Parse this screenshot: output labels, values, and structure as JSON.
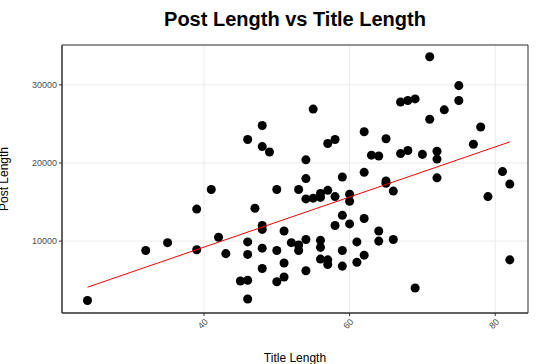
{
  "chart_data": {
    "type": "scatter",
    "title": "Post Length vs Title Length",
    "x_label": "Title Length",
    "y_label": "Post Length",
    "xlim": [
      20.5,
      84.5
    ],
    "ylim": [
      800,
      35100
    ],
    "xticks": [
      40,
      60,
      80
    ],
    "yticks": [
      10000,
      20000,
      30000
    ],
    "grid": true,
    "series": [
      {
        "type": "scatter",
        "color": "#000000",
        "marker": "circle",
        "x": [
          24,
          32,
          35,
          39,
          39,
          41,
          42,
          43,
          45,
          46,
          46,
          46,
          46,
          46,
          47,
          48,
          48,
          48,
          48,
          48,
          48,
          49,
          50,
          50,
          50,
          51,
          51,
          51,
          52,
          53,
          53,
          53,
          54,
          54,
          54,
          54,
          54,
          55,
          55,
          56,
          56,
          56,
          56,
          56,
          57,
          57,
          57,
          57,
          58,
          58,
          58,
          59,
          59,
          59,
          59,
          60,
          60,
          60,
          61,
          61,
          62,
          62,
          62,
          62,
          63,
          64,
          64,
          64,
          65,
          65,
          65,
          66,
          66,
          67,
          67,
          68,
          68,
          69,
          69,
          70,
          71,
          71,
          72,
          72,
          72,
          73,
          75,
          75,
          77,
          78,
          79,
          81,
          82,
          82
        ],
        "values": [
          2400,
          8800,
          9800,
          14100,
          8900,
          16600,
          10500,
          8400,
          4900,
          23000,
          9900,
          8300,
          5000,
          2600,
          14200,
          24800,
          22100,
          12000,
          11500,
          9100,
          6500,
          21400,
          16600,
          8800,
          4800,
          5400,
          7200,
          11300,
          9800,
          9500,
          16600,
          8800,
          20400,
          15400,
          18000,
          10200,
          6200,
          26900,
          15500,
          15600,
          16100,
          7700,
          9200,
          10100,
          22500,
          16500,
          7000,
          7600,
          23000,
          15700,
          12000,
          18200,
          13300,
          8800,
          6800,
          16000,
          15100,
          12200,
          9900,
          7300,
          24000,
          18800,
          12900,
          8200,
          21000,
          20900,
          11300,
          10000,
          23100,
          17700,
          17400,
          16400,
          10200,
          27800,
          21200,
          28000,
          21600,
          28200,
          4000,
          21100,
          33600,
          25600,
          21500,
          20500,
          18100,
          26800,
          29900,
          28000,
          22400,
          24600,
          15700,
          18900,
          17300,
          7600
        ]
      },
      {
        "type": "line",
        "color": "#ff0000",
        "x": [
          24,
          82
        ],
        "values": [
          4100,
          22700
        ]
      }
    ]
  }
}
